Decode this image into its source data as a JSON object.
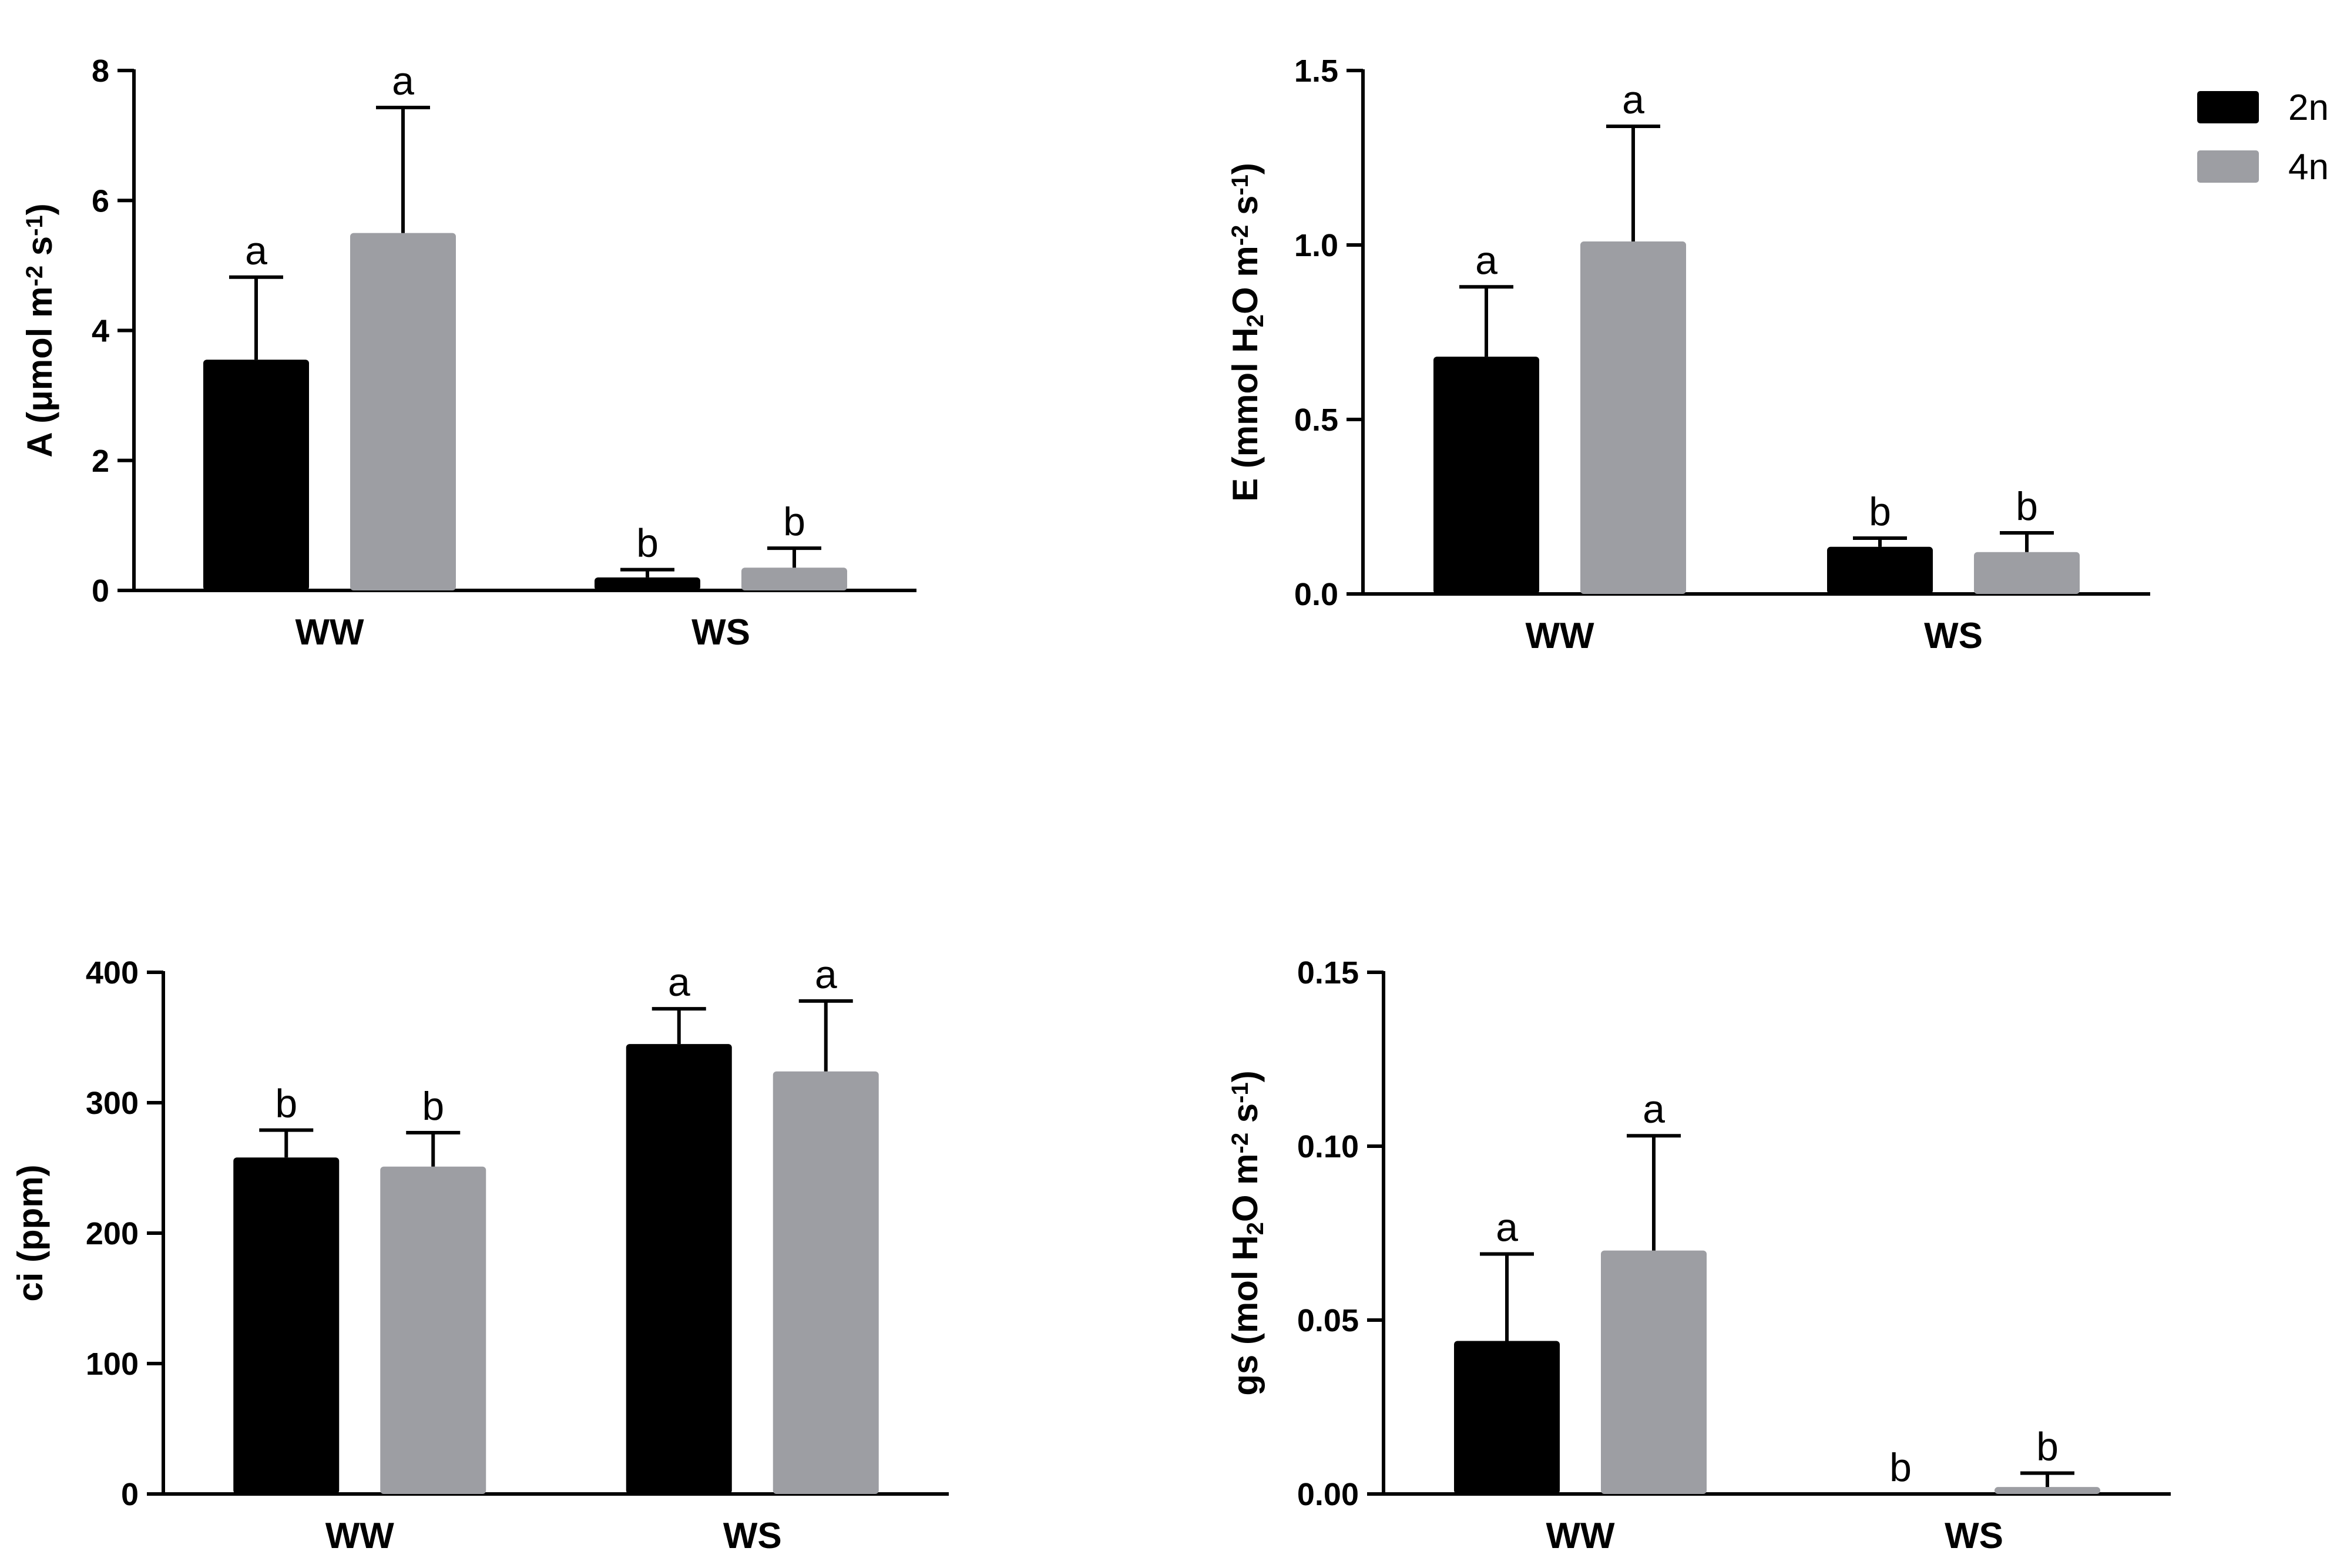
{
  "colors": {
    "series_2n": "#000000",
    "series_4n": "#9d9ea3",
    "axis": "#000000"
  },
  "legend": [
    {
      "name": "2n",
      "color": "#000000"
    },
    {
      "name": "4n",
      "color": "#9d9ea3"
    }
  ],
  "chart_data": [
    {
      "type": "bar",
      "title": "",
      "ylabel": "A (μmol m⁻² s⁻¹)",
      "ylabel_parts": [
        [
          "A (",
          ""
        ],
        [
          "μ",
          ""
        ],
        [
          "mol m",
          ""
        ],
        [
          "-2",
          "sup"
        ],
        [
          " s",
          ""
        ],
        [
          "-1",
          "sup"
        ],
        [
          ")",
          ""
        ]
      ],
      "categories": [
        "WW",
        "WS"
      ],
      "ylim": [
        0,
        8
      ],
      "ticks": [
        0,
        2,
        4,
        6,
        8
      ],
      "tick_labels": [
        "0",
        "2",
        "4",
        "6",
        "8"
      ],
      "series": [
        {
          "name": "2n",
          "values": [
            3.55,
            0.2
          ],
          "errors": [
            1.27,
            0.12
          ],
          "letters": [
            "a",
            "b"
          ]
        },
        {
          "name": "4n",
          "values": [
            5.5,
            0.35
          ],
          "errors": [
            1.93,
            0.3
          ],
          "letters": [
            "a",
            "b"
          ]
        }
      ]
    },
    {
      "type": "bar",
      "title": "",
      "ylabel": "E (mmol H₂O m⁻² s⁻¹)",
      "ylabel_parts": [
        [
          "E (mmol H",
          ""
        ],
        [
          "2",
          "sub"
        ],
        [
          "O m",
          ""
        ],
        [
          "-2",
          "sup"
        ],
        [
          " s",
          ""
        ],
        [
          "-1",
          "sup"
        ],
        [
          ")",
          ""
        ]
      ],
      "categories": [
        "WW",
        "WS"
      ],
      "ylim": [
        0,
        1.5
      ],
      "ticks": [
        0,
        0.5,
        1.0,
        1.5
      ],
      "tick_labels": [
        "0.0",
        "0.5",
        "1.0",
        "1.5"
      ],
      "series": [
        {
          "name": "2n",
          "values": [
            0.68,
            0.135
          ],
          "errors": [
            0.2,
            0.025
          ],
          "letters": [
            "a",
            "b"
          ]
        },
        {
          "name": "4n",
          "values": [
            1.01,
            0.12
          ],
          "errors": [
            0.33,
            0.055
          ],
          "letters": [
            "a",
            "b"
          ]
        }
      ]
    },
    {
      "type": "bar",
      "title": "",
      "ylabel": "ci (ppm)",
      "ylabel_parts": [
        [
          "ci (ppm)",
          ""
        ]
      ],
      "categories": [
        "WW",
        "WS"
      ],
      "ylim": [
        0,
        400
      ],
      "ticks": [
        0,
        100,
        200,
        300,
        400
      ],
      "tick_labels": [
        "0",
        "100",
        "200",
        "300",
        "400"
      ],
      "series": [
        {
          "name": "2n",
          "values": [
            258,
            345
          ],
          "errors": [
            21,
            27
          ],
          "letters": [
            "b",
            "a"
          ]
        },
        {
          "name": "4n",
          "values": [
            251,
            324
          ],
          "errors": [
            26,
            54
          ],
          "letters": [
            "b",
            "a"
          ]
        }
      ]
    },
    {
      "type": "bar",
      "title": "",
      "ylabel": "gs (mol H₂O m⁻² s⁻¹)",
      "ylabel_parts": [
        [
          "gs (mol H",
          ""
        ],
        [
          "2",
          "sub"
        ],
        [
          "O m",
          ""
        ],
        [
          "-2",
          "sup"
        ],
        [
          " s",
          ""
        ],
        [
          "-1",
          "sup"
        ],
        [
          ")",
          ""
        ]
      ],
      "categories": [
        "WW",
        "WS"
      ],
      "ylim": [
        0,
        0.15
      ],
      "ticks": [
        0,
        0.05,
        0.1,
        0.15
      ],
      "tick_labels": [
        "0.00",
        "0.05",
        "0.10",
        "0.15"
      ],
      "series": [
        {
          "name": "2n",
          "values": [
            0.044,
            0.0
          ],
          "errors": [
            0.025,
            0.0
          ],
          "letters": [
            "a",
            "b"
          ]
        },
        {
          "name": "4n",
          "values": [
            0.07,
            0.002
          ],
          "errors": [
            0.033,
            0.004
          ],
          "letters": [
            "a",
            "b"
          ]
        }
      ]
    }
  ]
}
